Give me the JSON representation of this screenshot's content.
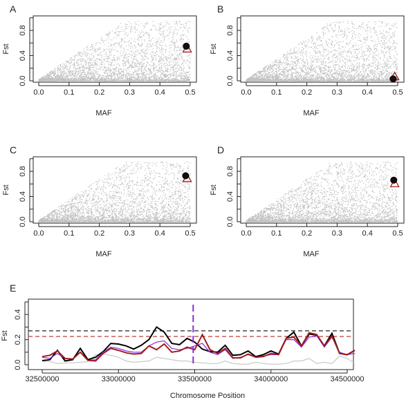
{
  "chart_data": [
    {
      "type": "scatter",
      "panel": "A",
      "xlabel": "MAF",
      "ylabel": "Fst",
      "xlim": [
        0,
        0.5
      ],
      "ylim": [
        0,
        1
      ],
      "xticks": [
        "0.0",
        "0.1",
        "0.2",
        "0.3",
        "0.4",
        "0.5"
      ],
      "yticks": [
        "0.0",
        "0.4",
        "0.8"
      ],
      "highlight": {
        "circle": [
          0.487,
          0.55
        ],
        "triangle": [
          0.49,
          0.5
        ]
      },
      "colors": {
        "background_points": "#bfbfbf",
        "circle": "#1a0a0a",
        "triangle": "#a01c1c"
      }
    },
    {
      "type": "scatter",
      "panel": "B",
      "xlabel": "MAF",
      "ylabel": "Fst",
      "xlim": [
        0,
        0.5
      ],
      "ylim": [
        0,
        1
      ],
      "xticks": [
        "0.0",
        "0.1",
        "0.2",
        "0.3",
        "0.4",
        "0.5"
      ],
      "yticks": [
        "0.0",
        "0.4",
        "0.8"
      ],
      "highlight": {
        "circle": [
          0.485,
          0.03
        ],
        "triangle": [
          0.49,
          0.06
        ]
      },
      "colors": {
        "background_points": "#bfbfbf",
        "circle": "#1a0a0a",
        "triangle": "#a01c1c"
      }
    },
    {
      "type": "scatter",
      "panel": "C",
      "xlabel": "MAF",
      "ylabel": "Fst",
      "xlim": [
        0,
        0.5
      ],
      "ylim": [
        0,
        1
      ],
      "xticks": [
        "0.0",
        "0.1",
        "0.2",
        "0.3",
        "0.4",
        "0.5"
      ],
      "yticks": [
        "0.0",
        "0.4",
        "0.8"
      ],
      "highlight": {
        "circle": [
          0.485,
          0.73
        ],
        "triangle": [
          0.49,
          0.68
        ]
      },
      "colors": {
        "background_points": "#bfbfbf",
        "circle": "#1a0a0a",
        "triangle": "#a01c1c"
      }
    },
    {
      "type": "scatter",
      "panel": "D",
      "xlabel": "MAF",
      "ylabel": "Fst",
      "xlim": [
        0,
        0.5
      ],
      "ylim": [
        0,
        1
      ],
      "xticks": [
        "0.0",
        "0.1",
        "0.2",
        "0.3",
        "0.4",
        "0.5"
      ],
      "yticks": [
        "0.0",
        "0.4",
        "0.8"
      ],
      "highlight": {
        "circle": [
          0.487,
          0.66
        ],
        "triangle": [
          0.49,
          0.6
        ]
      },
      "colors": {
        "background_points": "#bfbfbf",
        "circle": "#1a0a0a",
        "triangle": "#a01c1c"
      }
    },
    {
      "type": "line",
      "panel": "E",
      "xlabel": "Chromosome Position",
      "ylabel": "Fst",
      "xlim": [
        32500000,
        34500000
      ],
      "ylim": [
        0,
        0.5
      ],
      "xticks": [
        "32500000",
        "33000000",
        "33500000",
        "34000000",
        "34500000"
      ],
      "yticks": [
        "0.0",
        "0.2",
        "0.4"
      ],
      "x_start": 32500000,
      "x_step": 50000,
      "series": [
        {
          "color": "#000000",
          "values": [
            0.033,
            0.04,
            0.115,
            0.03,
            0.04,
            0.13,
            0.04,
            0.06,
            0.105,
            0.17,
            0.165,
            0.15,
            0.125,
            0.155,
            0.2,
            0.3,
            0.26,
            0.17,
            0.16,
            0.21,
            0.18,
            0.125,
            0.105,
            0.1,
            0.155,
            0.075,
            0.08,
            0.11,
            0.065,
            0.08,
            0.11,
            0.085,
            0.21,
            0.26,
            0.15,
            0.245,
            0.235,
            0.15,
            0.25,
            0.09,
            0.08,
            0.115
          ]
        },
        {
          "color": "#8a2be2",
          "values": [
            0.06,
            0.05,
            0.09,
            0.05,
            0.045,
            0.1,
            0.035,
            0.04,
            0.1,
            0.14,
            0.13,
            0.11,
            0.1,
            0.1,
            0.15,
            0.18,
            0.19,
            0.13,
            0.12,
            0.13,
            0.15,
            0.17,
            0.1,
            0.08,
            0.12,
            0.05,
            0.06,
            0.08,
            0.06,
            0.07,
            0.08,
            0.08,
            0.2,
            0.2,
            0.14,
            0.22,
            0.23,
            0.14,
            0.22,
            0.1,
            0.08,
            0.09
          ]
        },
        {
          "color": "#a01c1c",
          "values": [
            0.065,
            0.075,
            0.11,
            0.05,
            0.045,
            0.1,
            0.035,
            0.03,
            0.09,
            0.13,
            0.115,
            0.095,
            0.085,
            0.09,
            0.15,
            0.12,
            0.165,
            0.1,
            0.11,
            0.14,
            0.12,
            0.24,
            0.12,
            0.09,
            0.13,
            0.055,
            0.055,
            0.085,
            0.06,
            0.065,
            0.09,
            0.08,
            0.21,
            0.22,
            0.15,
            0.255,
            0.24,
            0.15,
            0.23,
            0.09,
            0.08,
            0.115
          ]
        },
        {
          "color": "#c8c8c8",
          "values": [
            0.03,
            0.025,
            0.01,
            0.015,
            0.015,
            0.02,
            0.025,
            0.08,
            0.085,
            0.075,
            0.06,
            0.03,
            0.02,
            0.025,
            0.03,
            0.06,
            0.05,
            0.04,
            0.03,
            0.03,
            0.02,
            0.015,
            0.01,
            0.01,
            0.03,
            0.01,
            0.005,
            0.005,
            0.02,
            0.01,
            0.005,
            0.005,
            0.01,
            0.03,
            0.03,
            0.05,
            0.01,
            0.02,
            0.01,
            0.07,
            0.05,
            0.01
          ]
        }
      ],
      "thresholds": [
        {
          "value": 0.27,
          "color": "#222222"
        },
        {
          "value": 0.225,
          "color": "#c0504d"
        }
      ],
      "marker": {
        "x": 33490000,
        "color": "#8a2be2"
      }
    }
  ]
}
